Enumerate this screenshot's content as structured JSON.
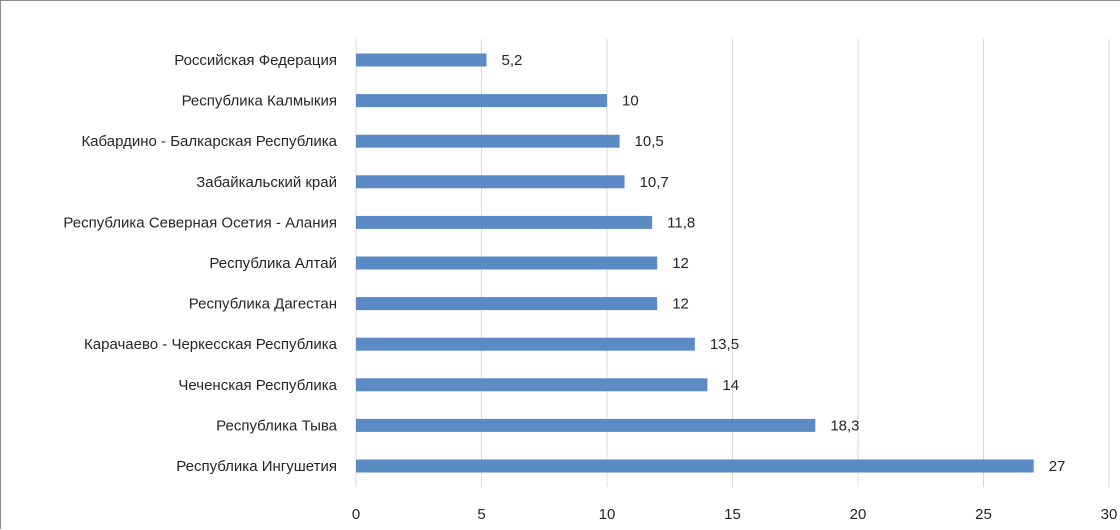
{
  "chart_data": {
    "type": "bar",
    "orientation": "horizontal",
    "categories": [
      "Российская Федерация",
      "Республика Калмыкия",
      "Кабардино - Балкарская Республика",
      "Забайкальский край",
      "Республика Северная Осетия - Алания",
      "Республика Алтай",
      "Республика Дагестан",
      "Карачаево - Черкесская Республика",
      "Чеченская Республика",
      "Республика Тыва",
      "Республика Ингушетия"
    ],
    "values": [
      5.2,
      10,
      10.5,
      10.7,
      11.8,
      12,
      12,
      13.5,
      14,
      18.3,
      27
    ],
    "value_labels": [
      "5,2",
      "10",
      "10,5",
      "10,7",
      "11,8",
      "12",
      "12",
      "13,5",
      "14",
      "18,3",
      "27"
    ],
    "xlim": [
      0,
      30
    ],
    "xticks": [
      "0",
      "5",
      "10",
      "15",
      "20",
      "25",
      "30"
    ],
    "grid": true,
    "bar_color": "#5b8bc4",
    "grid_color": "#d9d9d9",
    "title": "",
    "xlabel": "",
    "ylabel": ""
  }
}
